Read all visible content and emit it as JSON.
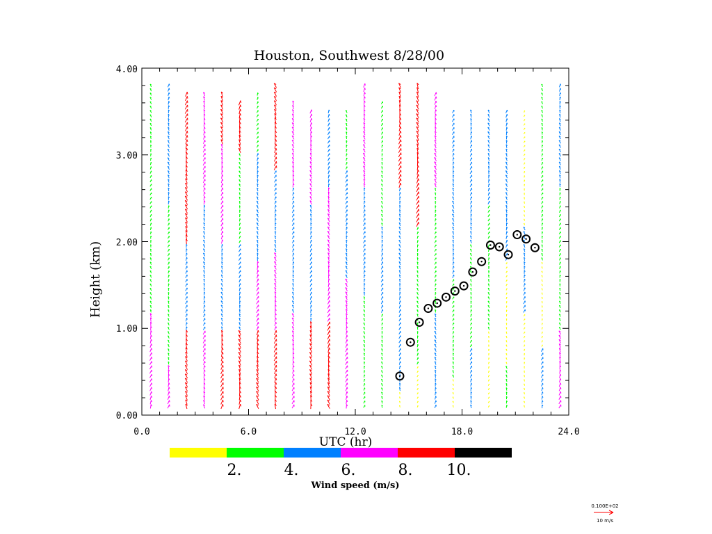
{
  "chart_data": {
    "type": "wind-profiler-time-height",
    "title": "Houston, Southwest   8/28/00",
    "xlabel": "UTC (hr)",
    "ylabel": "Height (km)",
    "xlim": [
      0,
      24
    ],
    "ylim": [
      0,
      4
    ],
    "xticks": [
      0,
      6,
      12,
      18,
      24
    ],
    "xtick_labels": [
      "0.0",
      "6.0",
      "12.0",
      "18.0",
      "24.0"
    ],
    "yticks": [
      0,
      1,
      2,
      3,
      4
    ],
    "ytick_labels": [
      "0.00",
      "1.00",
      "2.00",
      "3.00",
      "4.00"
    ],
    "colorbar": {
      "label": "Wind speed (m/s)",
      "colors": [
        "#ffff00",
        "#00ff00",
        "#0080ff",
        "#ff00ff",
        "#ff0000",
        "#000000"
      ],
      "tick_labels": [
        "2.",
        "4.",
        "6.",
        "8.",
        "10."
      ]
    },
    "reference_vector": {
      "label_top": "0.100E+02",
      "label_bottom": "10 m/s",
      "color": "#ff0000"
    },
    "profile_times": [
      0.5,
      1.5,
      2.5,
      3.5,
      4.5,
      5.5,
      6.5,
      7.5,
      8.5,
      9.5,
      10.5,
      11.5,
      12.5,
      13.5,
      14.5,
      15.5,
      16.5,
      17.5,
      18.5,
      19.5,
      20.5,
      21.5,
      22.5,
      23.5
    ],
    "profile_max_height_km": [
      3.8,
      3.8,
      3.7,
      3.7,
      3.7,
      3.6,
      3.7,
      3.8,
      3.6,
      3.5,
      3.5,
      3.5,
      3.8,
      3.6,
      3.8,
      3.8,
      3.7,
      3.5,
      3.5,
      3.5,
      3.5,
      3.5,
      3.8,
      3.8
    ],
    "wind_bands": [
      [
        [
          0.0,
          1.2,
          "magenta"
        ],
        [
          1.2,
          3.8,
          "green"
        ]
      ],
      [
        [
          0.0,
          0.6,
          "magenta"
        ],
        [
          0.6,
          2.4,
          "green"
        ],
        [
          2.4,
          3.8,
          "blue"
        ]
      ],
      [
        [
          0.0,
          1.0,
          "red"
        ],
        [
          1.0,
          2.0,
          "blue"
        ],
        [
          2.0,
          2.8,
          "red"
        ],
        [
          2.8,
          3.7,
          "red"
        ]
      ],
      [
        [
          0.0,
          1.0,
          "magenta"
        ],
        [
          1.0,
          2.4,
          "blue"
        ],
        [
          2.4,
          3.7,
          "magenta"
        ]
      ],
      [
        [
          0.0,
          1.0,
          "red"
        ],
        [
          1.0,
          2.0,
          "blue"
        ],
        [
          2.0,
          3.1,
          "magenta"
        ],
        [
          3.1,
          3.7,
          "red"
        ]
      ],
      [
        [
          0.0,
          1.0,
          "red"
        ],
        [
          1.0,
          2.0,
          "blue"
        ],
        [
          2.0,
          3.0,
          "green"
        ],
        [
          3.0,
          3.6,
          "red"
        ]
      ],
      [
        [
          0.0,
          1.0,
          "red"
        ],
        [
          1.0,
          1.8,
          "magenta"
        ],
        [
          1.8,
          3.0,
          "blue"
        ],
        [
          3.0,
          3.7,
          "green"
        ]
      ],
      [
        [
          0.0,
          1.0,
          "red"
        ],
        [
          1.0,
          1.9,
          "magenta"
        ],
        [
          1.9,
          2.8,
          "blue"
        ],
        [
          2.8,
          3.8,
          "red"
        ]
      ],
      [
        [
          0.0,
          1.2,
          "magenta"
        ],
        [
          1.2,
          2.6,
          "blue"
        ],
        [
          2.6,
          3.6,
          "magenta"
        ]
      ],
      [
        [
          0.0,
          1.1,
          "red"
        ],
        [
          1.1,
          2.4,
          "blue"
        ],
        [
          2.4,
          3.5,
          "magenta"
        ]
      ],
      [
        [
          0.0,
          1.1,
          "red"
        ],
        [
          1.1,
          2.6,
          "magenta"
        ],
        [
          2.6,
          3.5,
          "blue"
        ]
      ],
      [
        [
          0.0,
          1.6,
          "magenta"
        ],
        [
          1.6,
          2.8,
          "blue"
        ],
        [
          2.8,
          3.5,
          "green"
        ]
      ],
      [
        [
          0.0,
          1.4,
          "green"
        ],
        [
          1.4,
          2.6,
          "blue"
        ],
        [
          2.6,
          3.8,
          "magenta"
        ]
      ],
      [
        [
          0.0,
          1.2,
          "green"
        ],
        [
          1.2,
          2.2,
          "blue"
        ],
        [
          2.2,
          3.6,
          "green"
        ]
      ],
      [
        [
          0.0,
          0.3,
          "yellow"
        ],
        [
          0.3,
          2.6,
          "blue"
        ],
        [
          2.6,
          3.8,
          "red"
        ]
      ],
      [
        [
          0.0,
          0.6,
          "yellow"
        ],
        [
          0.6,
          2.2,
          "green"
        ],
        [
          2.2,
          3.8,
          "red"
        ]
      ],
      [
        [
          0.0,
          1.2,
          "blue"
        ],
        [
          1.2,
          2.6,
          "green"
        ],
        [
          2.6,
          3.7,
          "magenta"
        ]
      ],
      [
        [
          0.0,
          0.4,
          "yellow"
        ],
        [
          0.4,
          1.6,
          "green"
        ],
        [
          1.6,
          3.5,
          "blue"
        ]
      ],
      [
        [
          0.0,
          0.8,
          "blue"
        ],
        [
          0.8,
          2.0,
          "green"
        ],
        [
          2.0,
          3.5,
          "blue"
        ]
      ],
      [
        [
          0.0,
          1.0,
          "yellow"
        ],
        [
          1.0,
          2.4,
          "green"
        ],
        [
          2.4,
          3.5,
          "blue"
        ]
      ],
      [
        [
          0.0,
          0.6,
          "green"
        ],
        [
          0.6,
          1.8,
          "yellow"
        ],
        [
          1.8,
          3.5,
          "blue"
        ]
      ],
      [
        [
          0.0,
          1.2,
          "yellow"
        ],
        [
          1.2,
          2.2,
          "blue"
        ],
        [
          2.2,
          3.5,
          "yellow"
        ]
      ],
      [
        [
          0.0,
          0.8,
          "blue"
        ],
        [
          0.8,
          1.8,
          "yellow"
        ],
        [
          1.8,
          3.8,
          "green"
        ]
      ],
      [
        [
          0.0,
          1.0,
          "magenta"
        ],
        [
          1.0,
          2.6,
          "green"
        ],
        [
          2.6,
          3.8,
          "blue"
        ]
      ]
    ],
    "boundary_layer_height_km": [
      {
        "t": 14.5,
        "z": 0.45
      },
      {
        "t": 15.1,
        "z": 0.84
      },
      {
        "t": 15.6,
        "z": 1.07
      },
      {
        "t": 16.1,
        "z": 1.23
      },
      {
        "t": 16.6,
        "z": 1.29
      },
      {
        "t": 17.1,
        "z": 1.36
      },
      {
        "t": 17.6,
        "z": 1.43
      },
      {
        "t": 18.1,
        "z": 1.49
      },
      {
        "t": 18.6,
        "z": 1.65
      },
      {
        "t": 19.1,
        "z": 1.77
      },
      {
        "t": 19.6,
        "z": 1.96
      },
      {
        "t": 20.1,
        "z": 1.94
      },
      {
        "t": 20.6,
        "z": 1.85
      },
      {
        "t": 21.1,
        "z": 2.08
      },
      {
        "t": 21.6,
        "z": 2.03
      },
      {
        "t": 22.1,
        "z": 1.93
      }
    ]
  }
}
